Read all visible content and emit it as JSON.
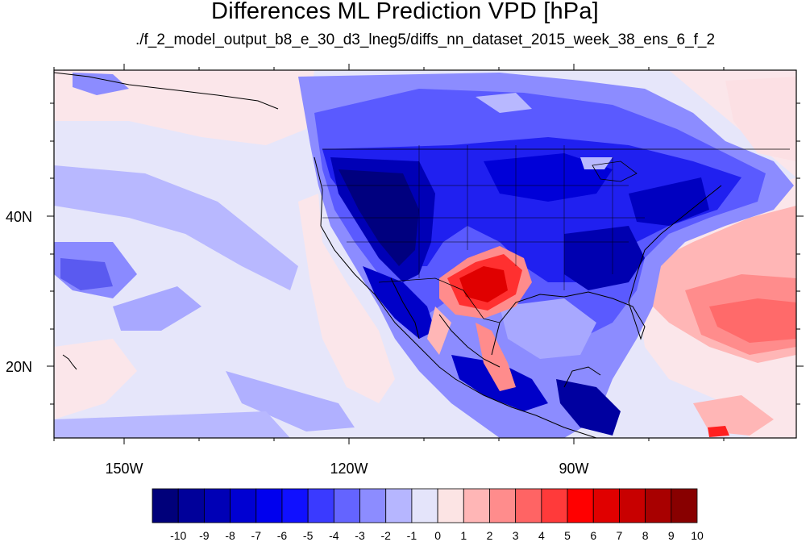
{
  "title": "Differences ML Prediction VPD [hPa]",
  "subtitle": "./f_2_model_output_b8_e_30_d3_lneg5/diffs_nn_dataset_2015_week_38_ens_6_f_2",
  "axes": {
    "lon_labels": [
      "150W",
      "120W",
      "90W"
    ],
    "lat_labels": [
      "40N",
      "20N"
    ]
  },
  "colorbar": {
    "labels": [
      "-10",
      "-9",
      "-8",
      "-7",
      "-6",
      "-5",
      "-4",
      "-3",
      "-2",
      "-1",
      "0",
      "1",
      "2",
      "3",
      "4",
      "5",
      "6",
      "7",
      "8",
      "9",
      "10"
    ],
    "colors": [
      "#00007a",
      "#00009a",
      "#0000b6",
      "#0000d2",
      "#0000ee",
      "#1010ff",
      "#3a3aff",
      "#6464ff",
      "#8c8cff",
      "#b6b6ff",
      "#e4e4fa",
      "#fce4e4",
      "#ffb6b6",
      "#ff8c8c",
      "#ff6464",
      "#ff3a3a",
      "#ff0000",
      "#e00000",
      "#c80000",
      "#a80000",
      "#880000"
    ]
  },
  "colors": {
    "background_field": "#e6e6fa",
    "coast": "#000000"
  }
}
